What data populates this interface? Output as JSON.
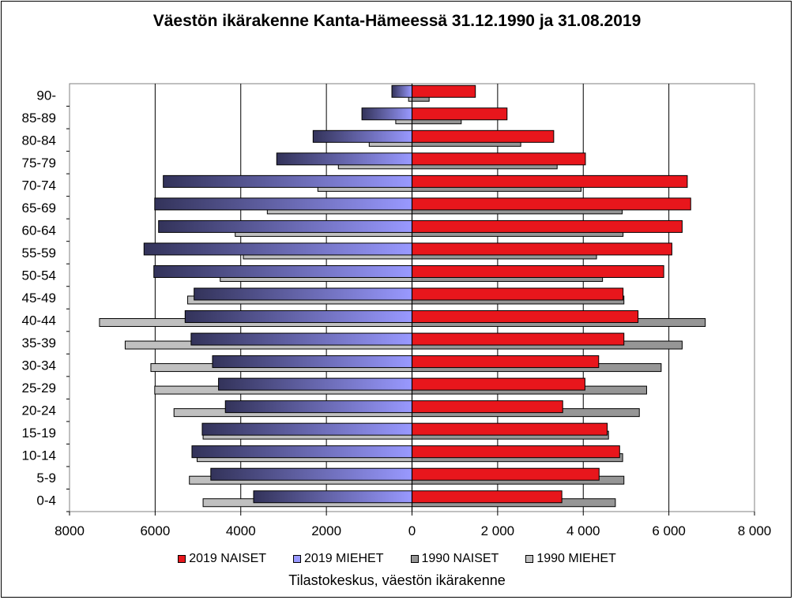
{
  "chart_data": {
    "type": "bar",
    "title": "Väestön ikärakenne Kanta-Hämeessä 31.12.1990 ja 31.08.2019",
    "caption": "Tilastokeskus, väestön ikärakenne",
    "orientation": "horizontal population pyramid",
    "categories": [
      "0-4",
      "5-9",
      "10-14",
      "15-19",
      "20-24",
      "25-29",
      "30-34",
      "35-39",
      "40-44",
      "45-49",
      "50-54",
      "55-59",
      "60-64",
      "65-69",
      "70-74",
      "75-79",
      "80-84",
      "85-89",
      "90-"
    ],
    "x_tick_labels": [
      "8000",
      "6000",
      "4000",
      "2000",
      "0",
      "2 000",
      "4 000",
      "6 000",
      "8 000"
    ],
    "xlim": [
      -8000,
      8000
    ],
    "grid": "vertical gridlines",
    "legend_position": "bottom",
    "series": [
      {
        "name": "2019 NAISET",
        "side": "right",
        "color": "#e8161c",
        "values": [
          3500,
          4370,
          4850,
          4560,
          3520,
          4040,
          4360,
          4950,
          5280,
          4930,
          5880,
          6070,
          6310,
          6510,
          6430,
          4050,
          3310,
          2220,
          1480
        ]
      },
      {
        "name": "2019 MIEHET",
        "side": "left",
        "color": "#9999ff",
        "values": [
          3700,
          4700,
          5140,
          4900,
          4360,
          4520,
          4660,
          5160,
          5300,
          5090,
          6030,
          6260,
          5920,
          6010,
          5810,
          3160,
          2310,
          1170,
          470
        ]
      },
      {
        "name": "1990 NAISET",
        "side": "right",
        "color": "#969696",
        "values": [
          4750,
          4950,
          4920,
          4590,
          5310,
          5480,
          5820,
          6310,
          6850,
          4950,
          4450,
          4310,
          4930,
          4910,
          3950,
          3390,
          2540,
          1150,
          400
        ]
      },
      {
        "name": "1990 MIEHET",
        "side": "left",
        "color": "#c0c0c0",
        "values": [
          4880,
          5200,
          5020,
          4880,
          5560,
          6010,
          6100,
          6700,
          7300,
          5240,
          4480,
          3940,
          4130,
          3380,
          2200,
          1720,
          1000,
          380,
          80
        ]
      }
    ]
  }
}
